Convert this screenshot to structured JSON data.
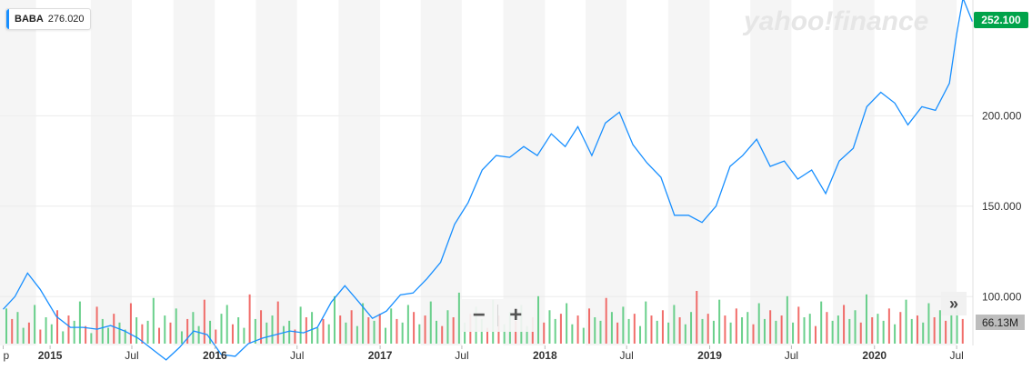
{
  "watermark": "yahoo!finance",
  "ticker": {
    "symbol": "BABA",
    "value": "276.020",
    "color": "#188fff"
  },
  "last_price_label": "252.100",
  "volume_label": "66.13M",
  "zoom": {
    "minus": "−",
    "plus": "+"
  },
  "expand_label": "»",
  "colors": {
    "line": "#188fff",
    "up_volume": "#50c878",
    "down_volume": "#ef5350",
    "band": "#f5f5f5",
    "last_price": "#00a34a"
  },
  "chart_data": {
    "type": "line",
    "title": "",
    "xlabel": "",
    "ylabel": "",
    "ylim": [
      73,
      264
    ],
    "y_ticks": [
      100,
      150,
      200
    ],
    "y_tick_labels": [
      "100.000",
      "150.000",
      "200.000"
    ],
    "x_tick_labels": [
      {
        "label": "p",
        "x": "2014-09-19",
        "bold": false
      },
      {
        "label": "2015",
        "x": "2015-01-01",
        "bold": true
      },
      {
        "label": "Jul",
        "x": "2015-07-01",
        "bold": false
      },
      {
        "label": "2016",
        "x": "2016-01-01",
        "bold": true
      },
      {
        "label": "Jul",
        "x": "2016-07-01",
        "bold": false
      },
      {
        "label": "2017",
        "x": "2017-01-01",
        "bold": true
      },
      {
        "label": "Jul",
        "x": "2017-07-01",
        "bold": false
      },
      {
        "label": "2018",
        "x": "2018-01-01",
        "bold": true
      },
      {
        "label": "Jul",
        "x": "2018-07-01",
        "bold": false
      },
      {
        "label": "2019",
        "x": "2019-01-01",
        "bold": true
      },
      {
        "label": "Jul",
        "x": "2019-07-01",
        "bold": false
      },
      {
        "label": "2020",
        "x": "2020-01-01",
        "bold": true
      },
      {
        "label": "Jul",
        "x": "2020-07-01",
        "bold": false
      }
    ],
    "series": [
      {
        "name": "BABA",
        "x": [
          "2014-09-19",
          "2014-10-15",
          "2014-11-12",
          "2014-12-10",
          "2015-01-15",
          "2015-02-15",
          "2015-03-15",
          "2015-04-15",
          "2015-05-15",
          "2015-06-15",
          "2015-07-15",
          "2015-08-15",
          "2015-09-15",
          "2015-10-15",
          "2015-11-15",
          "2015-12-15",
          "2016-01-15",
          "2016-02-15",
          "2016-03-15",
          "2016-04-15",
          "2016-05-15",
          "2016-06-15",
          "2016-07-15",
          "2016-08-15",
          "2016-09-15",
          "2016-10-15",
          "2016-11-15",
          "2016-12-15",
          "2017-01-15",
          "2017-02-15",
          "2017-03-15",
          "2017-04-15",
          "2017-05-15",
          "2017-06-15",
          "2017-07-15",
          "2017-08-15",
          "2017-09-15",
          "2017-10-15",
          "2017-11-15",
          "2017-12-15",
          "2018-01-15",
          "2018-02-15",
          "2018-03-15",
          "2018-04-15",
          "2018-05-15",
          "2018-06-15",
          "2018-07-15",
          "2018-08-15",
          "2018-09-15",
          "2018-10-15",
          "2018-11-15",
          "2018-12-15",
          "2019-01-15",
          "2019-02-15",
          "2019-03-15",
          "2019-04-15",
          "2019-05-15",
          "2019-06-15",
          "2019-07-15",
          "2019-08-15",
          "2019-09-15",
          "2019-10-15",
          "2019-11-15",
          "2019-12-15",
          "2020-01-15",
          "2020-02-15",
          "2020-03-15",
          "2020-04-15",
          "2020-05-15",
          "2020-06-15",
          "2020-07-01",
          "2020-07-15",
          "2020-08-05"
        ],
        "values": [
          93,
          100,
          113,
          104,
          89,
          83,
          83,
          82,
          84,
          81,
          77,
          71,
          65,
          72,
          81,
          79,
          68,
          67,
          74,
          77,
          79,
          81,
          80,
          83,
          97,
          106,
          97,
          88,
          92,
          101,
          102,
          110,
          119,
          140,
          152,
          170,
          178,
          177,
          183,
          178,
          190,
          183,
          194,
          178,
          196,
          202,
          184,
          174,
          166,
          145,
          145,
          141,
          150,
          172,
          178,
          187,
          172,
          175,
          165,
          170,
          157,
          175,
          182,
          205,
          213,
          207,
          195,
          205,
          203,
          218,
          245,
          265,
          252
        ]
      }
    ],
    "volume": {
      "values": [
        20,
        14,
        18,
        9,
        12,
        22,
        8,
        15,
        11,
        19,
        7,
        16,
        13,
        24,
        10,
        6,
        21,
        14,
        9,
        17,
        12,
        8,
        23,
        15,
        11,
        13,
        26,
        9,
        16,
        12,
        20,
        7,
        14,
        18,
        10,
        25,
        13,
        8,
        17,
        22,
        11,
        15,
        9,
        28,
        14,
        19,
        12,
        16,
        24,
        10,
        13,
        8,
        21,
        15,
        18,
        9,
        14,
        11,
        27,
        16,
        12,
        19,
        10,
        23,
        15,
        13,
        17,
        9,
        20,
        14,
        12,
        22,
        18,
        11,
        16,
        24,
        13,
        10,
        19,
        15,
        29,
        12,
        17,
        21,
        14,
        9,
        25,
        16,
        11,
        18,
        13,
        22,
        10,
        15,
        27,
        12,
        19,
        14,
        17,
        23,
        11,
        16,
        9,
        20,
        15,
        13,
        26,
        18,
        12,
        21,
        14,
        17,
        10,
        24,
        16,
        13,
        19,
        12,
        22,
        15,
        11,
        18,
        30,
        14,
        17,
        13,
        25,
        16,
        12,
        20,
        15,
        18,
        11,
        23,
        14,
        19,
        13,
        16,
        27,
        12,
        21,
        15,
        17,
        10,
        24,
        18,
        13,
        16,
        22,
        14,
        19,
        12,
        28,
        15,
        17,
        13,
        20,
        11,
        18,
        25,
        14,
        16,
        12,
        23,
        15,
        19,
        13,
        17,
        21,
        14
      ],
      "up": [
        1,
        0,
        1,
        1,
        0,
        1,
        0,
        1,
        1,
        0,
        1,
        0,
        1,
        1,
        0,
        1,
        0,
        1,
        1,
        0,
        1,
        1,
        0,
        1,
        0,
        1,
        1,
        0,
        1,
        0,
        1,
        1,
        0,
        1,
        1,
        0,
        1,
        0,
        1,
        1,
        0,
        1,
        1,
        0,
        1,
        0,
        1,
        1,
        0,
        1,
        1,
        0,
        1,
        0,
        1,
        1,
        0,
        1,
        1,
        0,
        1,
        0,
        1,
        1,
        0,
        1,
        0,
        1,
        1,
        0,
        1,
        1,
        0,
        1,
        0,
        1,
        1,
        0,
        1,
        0,
        1,
        1,
        0,
        1,
        1,
        0,
        1,
        0,
        1,
        1,
        0,
        1,
        1,
        0,
        1,
        0,
        1,
        1,
        0,
        1,
        1,
        0,
        1,
        0,
        1,
        1,
        0,
        1,
        0,
        1,
        1,
        0,
        1,
        1,
        0,
        1,
        0,
        1,
        1,
        0,
        1,
        1,
        0,
        1,
        0,
        1,
        1,
        0,
        1,
        0,
        1,
        1,
        0,
        1,
        1,
        0,
        1,
        0,
        1,
        1,
        0,
        1,
        1,
        0,
        1,
        0,
        1,
        1,
        0,
        1,
        1,
        0,
        1,
        0,
        1,
        1,
        0,
        1,
        0,
        1,
        1,
        0,
        1,
        1,
        0,
        1,
        0,
        1,
        1,
        0
      ]
    }
  }
}
